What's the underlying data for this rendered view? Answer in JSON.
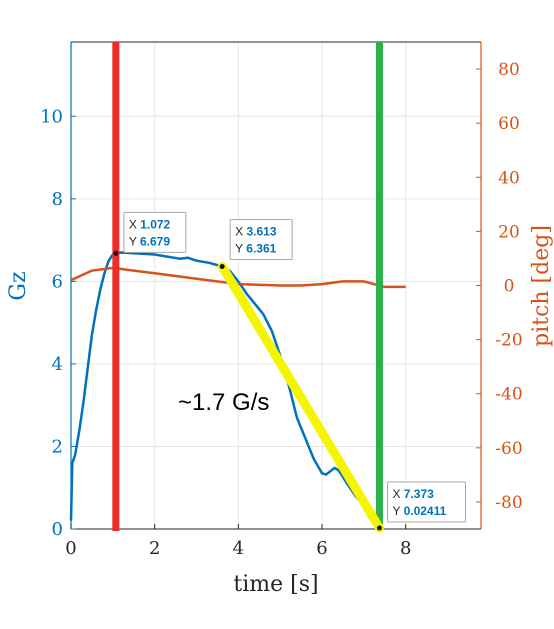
{
  "chart_data": {
    "type": "line",
    "title": "",
    "xlabel": "time [s]",
    "ylabel_left": "Gz",
    "ylabel_right": "pitch [deg]",
    "xlim": [
      0,
      9.8
    ],
    "ylim_left": [
      0,
      11.8
    ],
    "ylim_right": [
      -90,
      90
    ],
    "x_ticks": [
      "0",
      "2",
      "4",
      "6",
      "8"
    ],
    "y_left_ticks": [
      "0",
      "2",
      "4",
      "6",
      "8",
      "10"
    ],
    "y_right_ticks": [
      "-80",
      "-60",
      "-40",
      "-20",
      "0",
      "20",
      "40",
      "60",
      "80"
    ],
    "grid": true,
    "colors": {
      "gz": "#0072bd",
      "pitch": "#d95319",
      "red_marker": "#ef2b2b",
      "green_marker": "#2bb14a",
      "yellow_line": "#f5f500"
    },
    "series": [
      {
        "axis": "left",
        "x": [
          0,
          0.03,
          0.1,
          0.2,
          0.3,
          0.4,
          0.5,
          0.6,
          0.7,
          0.8,
          0.9,
          1.0,
          1.072,
          1.2,
          1.5,
          2.0,
          2.3,
          2.6,
          2.8,
          3.0,
          3.3,
          3.613,
          3.8,
          4.0,
          4.2,
          4.4,
          4.6,
          4.8,
          5.0,
          5.2,
          5.4,
          5.6,
          5.8,
          6.0,
          6.1,
          6.2,
          6.3,
          6.4,
          6.6,
          6.8,
          7.0,
          7.2,
          7.373
        ],
        "y": [
          0.2,
          1.6,
          1.8,
          2.4,
          3.1,
          3.9,
          4.7,
          5.3,
          5.8,
          6.2,
          6.5,
          6.65,
          6.679,
          6.7,
          6.68,
          6.65,
          6.6,
          6.55,
          6.57,
          6.5,
          6.45,
          6.361,
          6.25,
          6.0,
          5.7,
          5.45,
          5.2,
          4.8,
          4.2,
          3.5,
          2.7,
          2.2,
          1.7,
          1.35,
          1.32,
          1.4,
          1.48,
          1.42,
          1.1,
          0.8,
          0.55,
          0.25,
          0.02411
        ]
      },
      {
        "axis": "right",
        "x": [
          0,
          0.5,
          1.0,
          1.5,
          2.0,
          3.0,
          4.0,
          5.0,
          5.5,
          6.0,
          6.5,
          7.0,
          7.5,
          8.0
        ],
        "y": [
          2,
          5.5,
          6.5,
          5.5,
          4.5,
          2.5,
          0.5,
          0,
          0,
          0.5,
          1.5,
          1.5,
          -0.5,
          -0.5
        ]
      }
    ],
    "markers": [
      {
        "type": "vline",
        "x": 1.072,
        "color": "red"
      },
      {
        "type": "vline",
        "x": 7.373,
        "color": "green"
      },
      {
        "type": "segment",
        "x": [
          3.613,
          7.373
        ],
        "y": [
          6.361,
          0.02411
        ],
        "color": "yellow"
      }
    ],
    "datatips": [
      {
        "x_label": "X",
        "x_value": "1.072",
        "y_label": "Y",
        "y_value": "6.679",
        "x": 1.072,
        "y": 6.679
      },
      {
        "x_label": "X",
        "x_value": "3.613",
        "y_label": "Y",
        "y_value": "6.361",
        "x": 3.613,
        "y": 6.361
      },
      {
        "x_label": "X",
        "x_value": "7.373",
        "y_label": "Y",
        "y_value": "0.02411",
        "x": 7.373,
        "y": 0.02411
      }
    ],
    "annotation": "~1.7 G/s"
  }
}
